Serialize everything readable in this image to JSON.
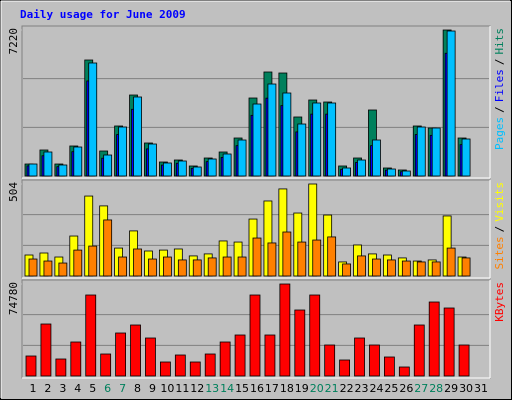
{
  "chart_data": [
    {
      "type": "bar",
      "title": "Daily usage for June 2009",
      "ylim": [
        0,
        7220
      ],
      "yticks": [
        7220
      ],
      "legend_separator": "/",
      "series": [
        {
          "name": "Pages",
          "color": "#00c0ff",
          "values": [
            593,
            1187,
            544,
            1434,
            5588,
            1038,
            2423,
            3907,
            1582,
            643,
            742,
            445,
            841,
            1088,
            1780,
            3560,
            4549,
            4104,
            2571,
            3610,
            3610,
            396,
            791,
            1780,
            346,
            247,
            2423,
            2374,
            7170,
            1830,
            0
          ]
        },
        {
          "name": "Files",
          "color": "#0000ff",
          "values": [
            500,
            1000,
            460,
            1200,
            4700,
            880,
            2050,
            3300,
            1340,
            540,
            630,
            380,
            710,
            920,
            1500,
            3000,
            3850,
            3480,
            2180,
            3060,
            3060,
            330,
            670,
            1500,
            290,
            210,
            2050,
            2010,
            6070,
            1550,
            0
          ]
        },
        {
          "name": "Hits",
          "color": "#00805c",
          "values": [
            593,
            1286,
            593,
            1484,
            5736,
            1236,
            2473,
            4005,
            1632,
            692,
            791,
            495,
            890,
            1187,
            1879,
            3857,
            5143,
            5093,
            2918,
            3758,
            3659,
            495,
            890,
            3264,
            396,
            297,
            2473,
            2374,
            7220,
            1879,
            0
          ]
        }
      ]
    },
    {
      "type": "bar",
      "ylim": [
        0,
        504
      ],
      "yticks": [
        504
      ],
      "legend_separator": "/",
      "series": [
        {
          "name": "Sites",
          "color": "#ff8000",
          "values": [
            93,
            82,
            71,
            142,
            164,
            307,
            104,
            148,
            93,
            104,
            88,
            88,
            99,
            104,
            104,
            208,
            181,
            241,
            186,
            197,
            214,
            66,
            110,
            93,
            88,
            82,
            77,
            77,
            153,
            99,
            0
          ]
        },
        {
          "name": "Visits",
          "color": "#ffff00",
          "values": [
            115,
            126,
            104,
            219,
            438,
            384,
            153,
            247,
            137,
            142,
            148,
            110,
            121,
            192,
            186,
            312,
            411,
            477,
            345,
            504,
            334,
            77,
            170,
            121,
            115,
            99,
            82,
            88,
            329,
            104,
            0
          ]
        }
      ]
    },
    {
      "type": "bar",
      "ylim": [
        0,
        74780
      ],
      "yticks": [
        74780
      ],
      "categories": [
        "1",
        "2",
        "3",
        "4",
        "5",
        "6",
        "7",
        "8",
        "9",
        "10",
        "11",
        "12",
        "13",
        "14",
        "15",
        "16",
        "17",
        "18",
        "19",
        "20",
        "21",
        "22",
        "23",
        "24",
        "25",
        "26",
        "27",
        "28",
        "29",
        "30",
        "31"
      ],
      "category_colors": [
        "#000000",
        "#000000",
        "#000000",
        "#000000",
        "#000000",
        "#00805c",
        "#00805c",
        "#000000",
        "#000000",
        "#000000",
        "#000000",
        "#000000",
        "#00805c",
        "#00805c",
        "#000000",
        "#000000",
        "#000000",
        "#000000",
        "#000000",
        "#00805c",
        "#00805c",
        "#000000",
        "#000000",
        "#000000",
        "#000000",
        "#000000",
        "#00805c",
        "#00805c",
        "#000000",
        "#000000",
        "#000000"
      ],
      "series": [
        {
          "name": "KBytes",
          "color": "#ff0000",
          "values": [
            16256,
            42266,
            13818,
            27635,
            65837,
            17882,
            34950,
            41453,
            30886,
            11379,
            17069,
            11379,
            17882,
            27635,
            33325,
            65837,
            33325,
            74780,
            53645,
            65837,
            25197,
            13005,
            30886,
            25197,
            15443,
            7315,
            41453,
            60147,
            55270,
            25197,
            0
          ]
        }
      ]
    }
  ]
}
